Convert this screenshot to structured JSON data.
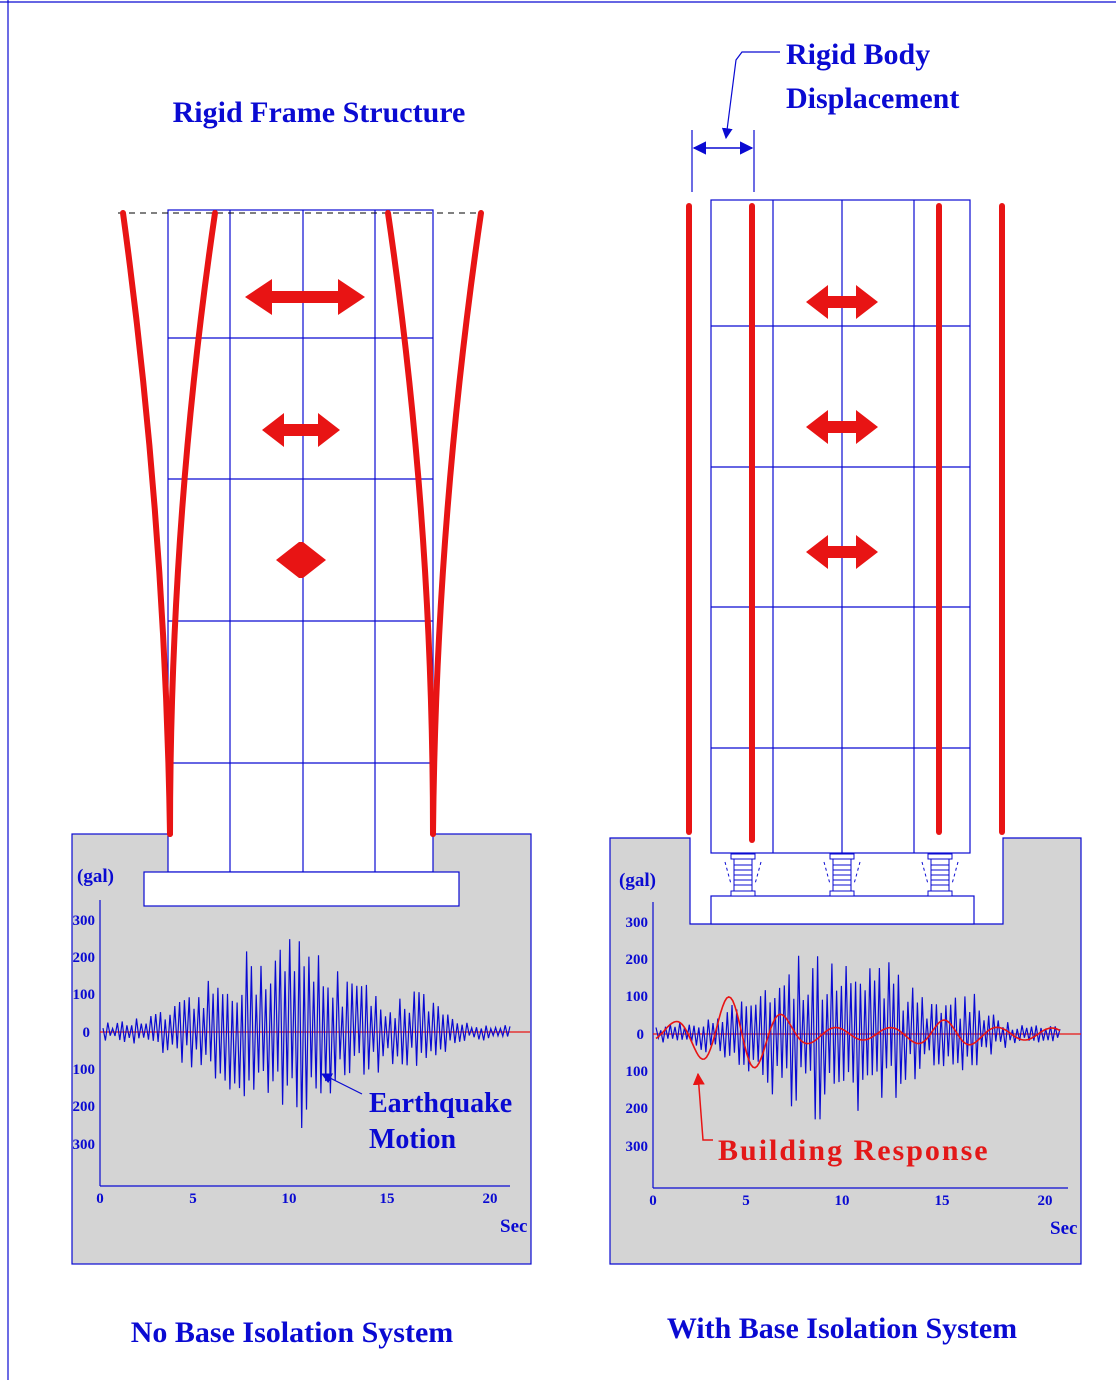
{
  "left": {
    "title": "Rigid Frame Structure",
    "caption": "No Base Isolation System",
    "chart_unit": "(gal)",
    "y_ticks": [
      "300",
      "200",
      "100",
      "0",
      "100",
      "200",
      "300"
    ],
    "x_ticks": [
      "0",
      "5",
      "10",
      "15",
      "20"
    ],
    "x_unit": "Sec",
    "annotation_line1": "Earthquake",
    "annotation_line2": "Motion"
  },
  "right": {
    "title_line1": "Rigid Body",
    "title_line2": "Displacement",
    "caption": "With Base Isolation System",
    "chart_unit": "(gal)",
    "y_ticks": [
      "300",
      "200",
      "100",
      "0",
      "100",
      "200",
      "300"
    ],
    "x_ticks": [
      "0",
      "5",
      "10",
      "15",
      "20"
    ],
    "x_unit": "Sec",
    "annotation": "Building Response"
  },
  "colors": {
    "blue": "#0a0ad2",
    "red": "#e81414",
    "panel_grey": "#d4d4d4"
  }
}
